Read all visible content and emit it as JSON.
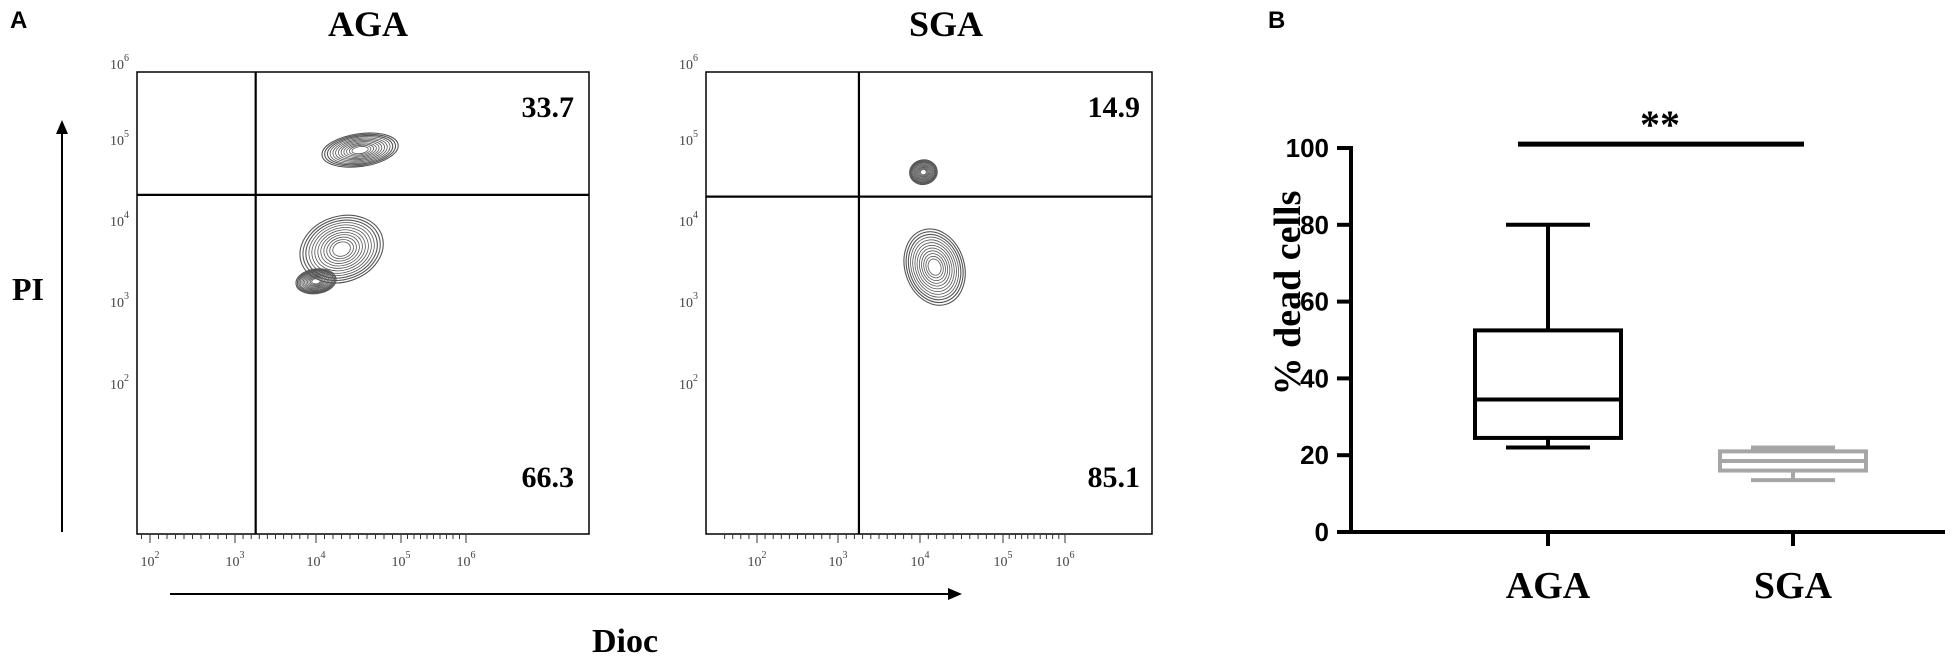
{
  "panel_labels": {
    "a": "A",
    "b": "B"
  },
  "flow_shared": {
    "y_axis_label": "PI",
    "x_axis_label": "Dioc",
    "tick_base": "10",
    "tick_exponents": [
      "2",
      "3",
      "4",
      "5",
      "6"
    ]
  },
  "colors": {
    "ink": "#000000",
    "aga_box": "#000000",
    "sga_box": "#a6a6a6",
    "contour": "#555555"
  },
  "chart_data": [
    {
      "type": "contour",
      "title": "AGA",
      "x_scale": "log",
      "y_scale": "log",
      "xlim": [
        10,
        1000000
      ],
      "ylim": [
        10,
        1000000
      ],
      "quadrant_gate": {
        "x": 1800,
        "y": 21000
      },
      "quadrant_percentages": {
        "upper_right": "33.7",
        "lower_right": "66.3"
      },
      "populations": [
        {
          "x": 33000,
          "y": 75000,
          "spread_x": 0.38,
          "spread_y": 0.16
        },
        {
          "x": 20000,
          "y": 4500,
          "spread_x": 0.42,
          "spread_y": 0.32
        },
        {
          "x": 10000,
          "y": 1800,
          "spread_x": 0.2,
          "spread_y": 0.12
        }
      ]
    },
    {
      "type": "contour",
      "title": "SGA",
      "x_scale": "log",
      "y_scale": "log",
      "xlim": [
        10,
        1000000
      ],
      "ylim": [
        10,
        1000000
      ],
      "quadrant_gate": {
        "x": 1800,
        "y": 20000
      },
      "quadrant_percentages": {
        "upper_right": "14.9",
        "lower_right": "85.1"
      },
      "populations": [
        {
          "x": 11000,
          "y": 40000,
          "spread_x": 0.14,
          "spread_y": 0.12
        },
        {
          "x": 15000,
          "y": 2700,
          "spread_x": 0.3,
          "spread_y": 0.38
        }
      ]
    },
    {
      "type": "box",
      "ylabel": "% dead cells",
      "ylim": [
        0,
        100
      ],
      "yticks": [
        "0",
        "20",
        "40",
        "60",
        "80",
        "100"
      ],
      "categories": [
        "AGA",
        "SGA"
      ],
      "series": [
        {
          "category": "AGA",
          "min": 22,
          "q1": 24.5,
          "median": 34.5,
          "q3": 52.5,
          "max": 80
        },
        {
          "category": "SGA",
          "min": 13.5,
          "q1": 16,
          "median": 18.5,
          "q3": 21,
          "max": 22
        }
      ],
      "significance": {
        "label": "**",
        "y": 101
      }
    }
  ]
}
